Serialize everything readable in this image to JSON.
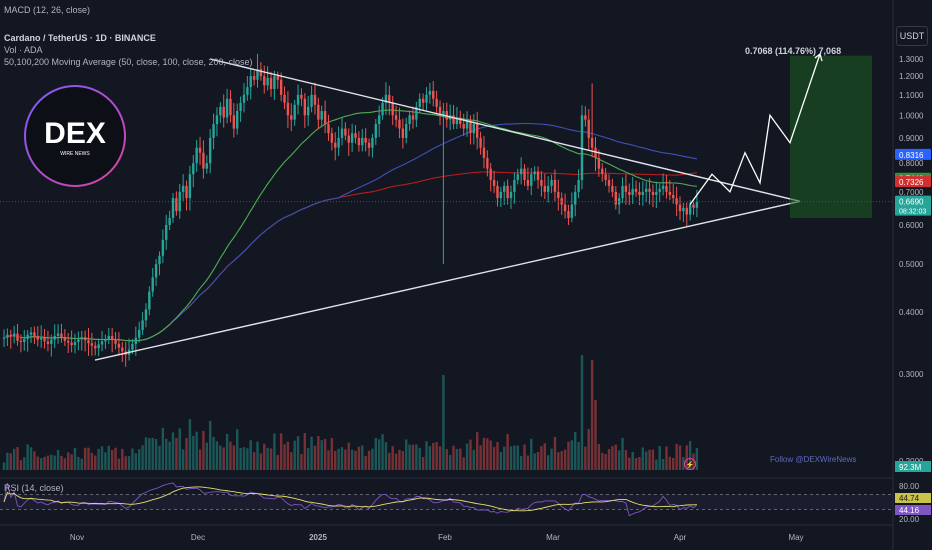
{
  "header": {
    "macd_label": "MACD (12, 26, close)",
    "symbol_line": "Cardano / TetherUS · 1D · BINANCE",
    "vol_label": "Vol · ADA",
    "ma_label": "50,100,200 Moving Average (50, close, 100, close, 200, close)",
    "rsi_label": "RSI (14, close)"
  },
  "axis": {
    "unit": "USDT"
  },
  "logo": {
    "text": "DEX",
    "sub": "WIRE NEWS"
  },
  "watermark": "Follow @DEXWireNews",
  "target_label": "0.7068 (114.76%) 7,068",
  "colors": {
    "bg": "#131722",
    "up": "#26a69a",
    "down": "#ef5350",
    "ma50": "#4caf50",
    "ma100": "#3f51b5",
    "ma200": "#b71c1c",
    "rsi": "#7e57c2",
    "rsi_ma": "#e6e36b",
    "lines": "#e0e3eb",
    "target_box": "#1b5e20"
  },
  "chart_data": {
    "type": "candlestick",
    "ylim": [
      0.2,
      1.4
    ],
    "log_scale": true,
    "grid": false,
    "x_ticks": [
      "Nov",
      "Dec",
      "2025",
      "Feb",
      "Mar",
      "Apr",
      "May"
    ],
    "y_ticks": [
      "1.3000",
      "1.2000",
      "1.1000",
      "1.0000",
      "0.9000",
      "0.8000",
      "0.7000",
      "0.6000",
      "0.5000",
      "0.4000",
      "0.3000",
      "0.2000"
    ],
    "price_tags": [
      {
        "value": "0.8316",
        "price": 0.8316,
        "color": "#2962ff"
      },
      {
        "value": "0.7442",
        "price": 0.7442,
        "color": "#388e3c"
      },
      {
        "value": "0.7326",
        "price": 0.7326,
        "color": "#d32f2f"
      },
      {
        "value": "0.6690",
        "price": 0.669,
        "color": "#26a69a",
        "sub": "08:32:03"
      }
    ],
    "volume_tag": "92.3M",
    "rsi_ticks": [
      "80.00",
      "20.00"
    ],
    "rsi_tags": [
      {
        "value": "44.74",
        "color": "#c9c34a"
      },
      {
        "value": "44.16",
        "color": "#7e57c2"
      }
    ],
    "rsi_bands": [
      70,
      30
    ],
    "target": {
      "entry": 0.62,
      "top": 1.32
    },
    "projected_path": [
      0.66,
      0.76,
      0.7,
      0.84,
      0.73,
      1.0,
      0.88,
      1.33
    ],
    "triangle": {
      "upper_start": 1.3,
      "lower_start": 0.32,
      "apex": 0.67
    },
    "seed": 7,
    "closes": [
      0.355,
      0.36,
      0.357,
      0.362,
      0.35,
      0.348,
      0.353,
      0.36,
      0.364,
      0.358,
      0.352,
      0.355,
      0.349,
      0.345,
      0.352,
      0.358,
      0.362,
      0.356,
      0.35,
      0.347,
      0.343,
      0.348,
      0.352,
      0.356,
      0.351,
      0.346,
      0.342,
      0.338,
      0.344,
      0.349,
      0.353,
      0.358,
      0.351,
      0.345,
      0.339,
      0.333,
      0.328,
      0.336,
      0.345,
      0.355,
      0.368,
      0.385,
      0.405,
      0.44,
      0.47,
      0.5,
      0.52,
      0.56,
      0.6,
      0.62,
      0.68,
      0.64,
      0.7,
      0.72,
      0.68,
      0.76,
      0.8,
      0.86,
      0.84,
      0.78,
      0.8,
      0.9,
      0.96,
      1.0,
      1.04,
      0.99,
      1.08,
      1.0,
      0.94,
      1.02,
      1.06,
      1.1,
      1.14,
      1.2,
      1.18,
      1.24,
      1.2,
      1.15,
      1.19,
      1.13,
      1.2,
      1.18,
      1.1,
      1.06,
      1.0,
      0.98,
      1.05,
      1.1,
      1.08,
      1.0,
      1.04,
      1.1,
      1.05,
      0.98,
      1.02,
      0.96,
      0.92,
      0.88,
      0.86,
      0.9,
      0.94,
      0.91,
      0.88,
      0.92,
      0.9,
      0.87,
      0.9,
      0.88,
      0.86,
      0.9,
      0.96,
      1.0,
      1.06,
      1.1,
      1.06,
      1.0,
      0.98,
      0.94,
      0.9,
      0.96,
      1.0,
      0.98,
      1.04,
      1.08,
      1.06,
      1.1,
      1.12,
      1.08,
      1.04,
      1.0,
      1.02,
      0.98,
      1.0,
      0.96,
      0.99,
      0.96,
      0.94,
      0.98,
      0.92,
      0.96,
      0.9,
      0.86,
      0.82,
      0.78,
      0.74,
      0.72,
      0.68,
      0.7,
      0.72,
      0.68,
      0.7,
      0.74,
      0.76,
      0.78,
      0.74,
      0.72,
      0.76,
      0.77,
      0.74,
      0.72,
      0.7,
      0.72,
      0.74,
      0.7,
      0.68,
      0.66,
      0.64,
      0.62,
      0.66,
      0.7,
      0.74,
      1.0,
      0.98,
      0.9,
      0.86,
      0.82,
      0.78,
      0.76,
      0.74,
      0.72,
      0.7,
      0.66,
      0.68,
      0.72,
      0.7,
      0.69,
      0.71,
      0.7,
      0.69,
      0.7,
      0.71,
      0.7,
      0.69,
      0.7,
      0.71,
      0.72,
      0.7,
      0.69,
      0.68,
      0.66,
      0.64,
      0.65,
      0.63,
      0.66,
      0.65,
      0.669
    ]
  }
}
